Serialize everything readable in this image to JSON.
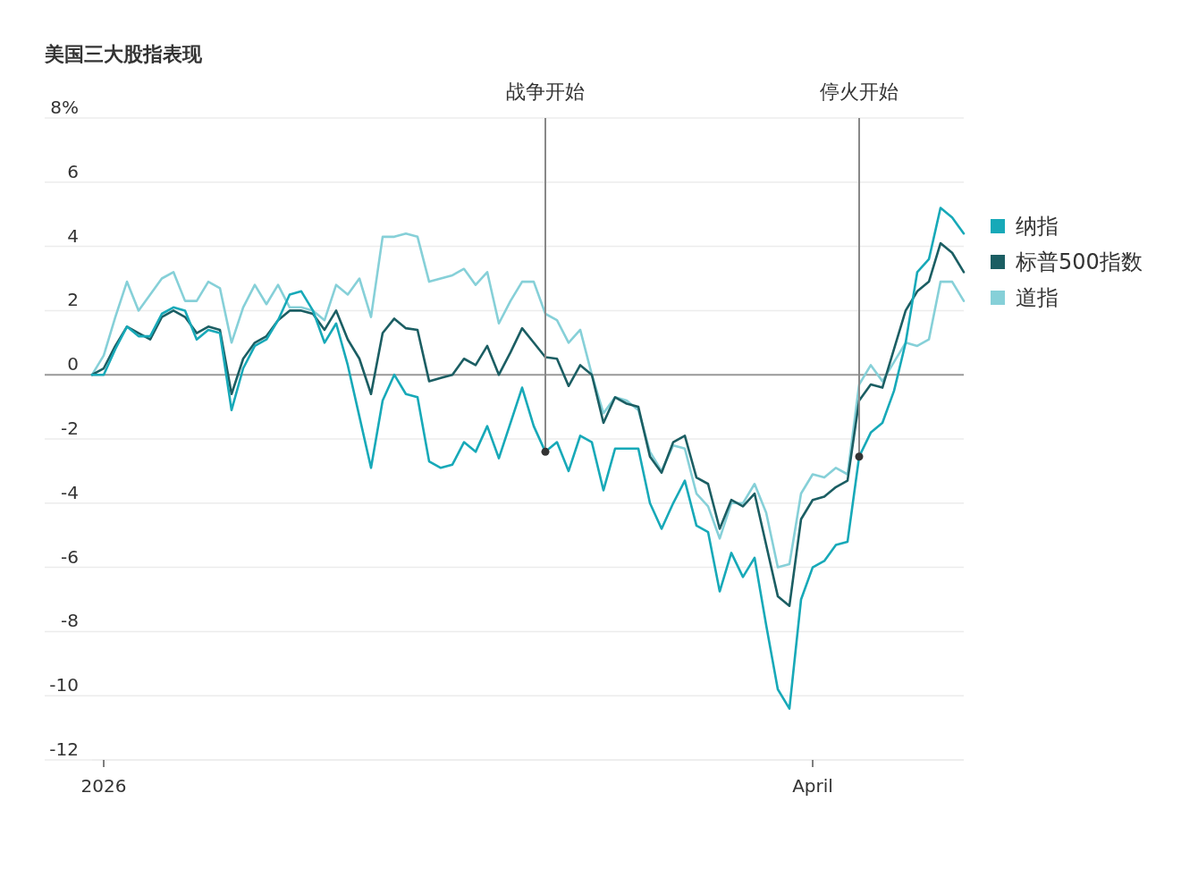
{
  "chart_data": {
    "type": "line",
    "title": "美国三大股指表现",
    "categories": [
      null,
      "2026",
      null,
      null,
      null,
      null,
      null,
      null,
      null,
      null,
      null,
      null,
      null,
      null,
      null,
      null,
      null,
      null,
      null,
      null,
      null,
      null,
      null,
      null,
      null,
      null,
      null,
      null,
      null,
      null,
      null,
      null,
      null,
      null,
      null,
      null,
      null,
      null,
      null,
      null,
      null,
      null,
      null,
      null,
      null,
      null,
      null,
      null,
      null,
      null,
      null,
      null,
      null,
      null,
      null,
      null,
      null,
      null,
      null,
      null,
      null,
      null,
      "April",
      null,
      null,
      null,
      null,
      null,
      null,
      null,
      null,
      null,
      null,
      null,
      null,
      null
    ],
    "ylim": [
      -12,
      8
    ],
    "yticks": [
      {
        "value": 8,
        "label": "8%"
      },
      6,
      4,
      2,
      0,
      -2,
      -4,
      -6,
      -8,
      -10,
      -12
    ],
    "grid": "y",
    "legend": "right",
    "annotations": [
      {
        "text": "战争开始",
        "y": -2.4
      },
      {
        "text": "停火开始",
        "y": -2.55
      }
    ],
    "series": [
      {
        "name": "纳指",
        "color": "#17a9b8",
        "values": [
          0,
          0,
          0.8,
          1.5,
          1.2,
          1.2,
          1.9,
          2.1,
          2.0,
          1.1,
          1.4,
          1.3,
          -1.1,
          0.2,
          0.9,
          1.1,
          1.7,
          2.5,
          2.6,
          2.0,
          1.0,
          1.6,
          0.3,
          -1.3,
          -2.9,
          -0.8,
          0.0,
          -0.6,
          -0.7,
          -2.7,
          -2.9,
          -2.8,
          -2.1,
          -2.4,
          -1.6,
          -2.6,
          -1.5,
          -0.4,
          -1.6,
          -2.4,
          -2.1,
          -3.0,
          -1.9,
          -2.1,
          -3.6,
          -2.3,
          -2.3,
          -2.3,
          -4.0,
          -4.8,
          -4.0,
          -3.3,
          -4.7,
          -4.9,
          -6.75,
          -5.55,
          -6.3,
          -5.7,
          -7.8,
          -9.8,
          -10.4,
          -7.0,
          -6.0,
          -5.8,
          -5.3,
          -5.2,
          -2.55,
          -1.8,
          -1.5,
          -0.5,
          1.0,
          3.2,
          3.6,
          5.2,
          4.9,
          4.4
        ]
      },
      {
        "name": "标普500指数",
        "color": "#1b5e63",
        "values": [
          0,
          0.2,
          0.9,
          1.5,
          1.3,
          1.1,
          1.8,
          2.0,
          1.8,
          1.3,
          1.5,
          1.4,
          -0.6,
          0.5,
          1.0,
          1.2,
          1.7,
          2.0,
          2.0,
          1.9,
          1.4,
          2.0,
          1.1,
          0.5,
          -0.6,
          1.3,
          1.75,
          1.45,
          1.4,
          -0.2,
          -0.1,
          0.0,
          0.5,
          0.3,
          0.9,
          0.0,
          0.7,
          1.45,
          1.0,
          0.55,
          0.5,
          -0.35,
          0.3,
          0.0,
          -1.5,
          -0.7,
          -0.9,
          -1.0,
          -2.55,
          -3.05,
          -2.1,
          -1.9,
          -3.2,
          -3.4,
          -4.8,
          -3.9,
          -4.1,
          -3.7,
          -5.3,
          -6.9,
          -7.2,
          -4.5,
          -3.9,
          -3.8,
          -3.5,
          -3.3,
          -0.8,
          -0.3,
          -0.4,
          0.8,
          2.0,
          2.6,
          2.9,
          4.1,
          3.8,
          3.2
        ]
      },
      {
        "name": "道指",
        "color": "#86d0d8",
        "values": [
          0,
          0.6,
          1.8,
          2.9,
          2.0,
          2.5,
          3.0,
          3.2,
          2.3,
          2.3,
          2.9,
          2.7,
          1.0,
          2.1,
          2.8,
          2.2,
          2.8,
          2.1,
          2.1,
          2.0,
          1.7,
          2.8,
          2.5,
          3.0,
          1.8,
          4.3,
          4.3,
          4.4,
          4.3,
          2.9,
          3.0,
          3.1,
          3.3,
          2.8,
          3.2,
          1.6,
          2.3,
          2.9,
          2.9,
          1.9,
          1.7,
          1.0,
          1.4,
          0.0,
          -1.2,
          -0.7,
          -0.8,
          -1.1,
          -2.4,
          -3.0,
          -2.2,
          -2.3,
          -3.7,
          -4.1,
          -5.1,
          -4.0,
          -4.0,
          -3.4,
          -4.3,
          -6.0,
          -5.9,
          -3.7,
          -3.1,
          -3.2,
          -2.9,
          -3.1,
          -0.3,
          0.3,
          -0.2,
          0.4,
          1.0,
          0.9,
          1.1,
          2.9,
          2.9,
          2.3
        ]
      }
    ]
  }
}
